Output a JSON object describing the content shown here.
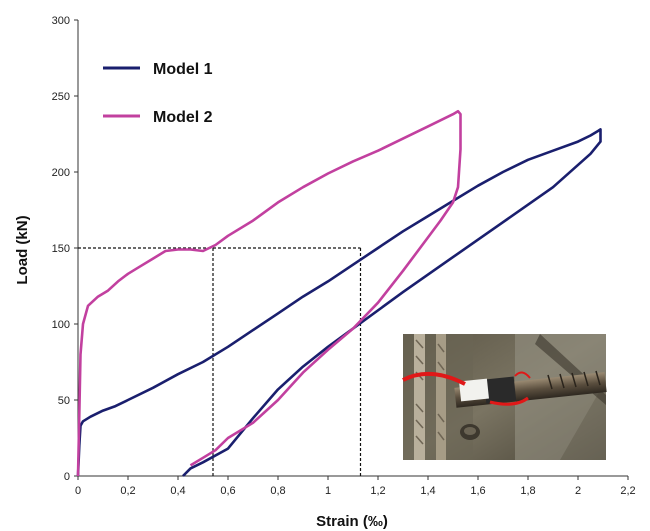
{
  "chart_data": {
    "type": "line",
    "xlabel": "Strain (‰)",
    "ylabel": "Load (kN)",
    "xlim": [
      0,
      2.2
    ],
    "ylim": [
      0,
      300
    ],
    "x_ticks": [
      "0",
      "0,2",
      "0,4",
      "0,6",
      "0,8",
      "1",
      "1,2",
      "1,4",
      "1,6",
      "1,8",
      "2",
      "2,2"
    ],
    "y_ticks": [
      "0",
      "50",
      "100",
      "150",
      "200",
      "250",
      "300"
    ],
    "grid": false,
    "legend_position": "top-left",
    "series": [
      {
        "name": "Model 1",
        "color": "#1a1f6e",
        "x": [
          0,
          0.005,
          0.01,
          0.02,
          0.05,
          0.1,
          0.15,
          0.2,
          0.3,
          0.4,
          0.5,
          0.6,
          0.7,
          0.8,
          0.9,
          1.0,
          1.1,
          1.2,
          1.3,
          1.4,
          1.5,
          1.6,
          1.7,
          1.8,
          1.9,
          2.0,
          2.05,
          2.08,
          2.09,
          2.09,
          2.05,
          1.9,
          1.7,
          1.5,
          1.3,
          1.1,
          1.0,
          0.9,
          0.8,
          0.7,
          0.6,
          0.5,
          0.45,
          0.42
        ],
        "y": [
          0,
          20,
          33,
          36,
          39,
          43,
          46,
          50,
          58,
          67,
          75,
          85,
          96,
          107,
          118,
          128,
          139,
          150,
          161,
          171,
          181,
          191,
          200,
          208,
          214,
          220,
          224,
          227,
          228,
          220,
          212,
          190,
          167,
          144,
          121,
          97,
          85,
          72,
          57,
          38,
          18,
          9,
          5,
          0
        ]
      },
      {
        "name": "Model 2",
        "color": "#c2409f",
        "x": [
          0,
          0.005,
          0.01,
          0.02,
          0.04,
          0.08,
          0.12,
          0.16,
          0.2,
          0.25,
          0.3,
          0.35,
          0.4,
          0.45,
          0.5,
          0.55,
          0.6,
          0.7,
          0.8,
          0.9,
          1.0,
          1.1,
          1.2,
          1.3,
          1.4,
          1.45,
          1.5,
          1.52,
          1.53,
          1.53,
          1.52,
          1.5,
          1.45,
          1.4,
          1.3,
          1.2,
          1.1,
          1.0,
          0.9,
          0.8,
          0.7,
          0.6,
          0.55,
          0.5,
          0.45
        ],
        "y": [
          0,
          40,
          80,
          100,
          112,
          118,
          122,
          128,
          133,
          138,
          143,
          148,
          149,
          149,
          148,
          152,
          158,
          168,
          180,
          190,
          199,
          207,
          214,
          222,
          230,
          234,
          238,
          240,
          238,
          215,
          190,
          180,
          168,
          157,
          135,
          114,
          97,
          83,
          68,
          50,
          35,
          25,
          17,
          12,
          7
        ]
      }
    ],
    "reference_lines": [
      {
        "x": [
          0,
          1.13
        ],
        "y": [
          150,
          150
        ]
      },
      {
        "x": [
          0.54,
          0.54
        ],
        "y": [
          0,
          150
        ]
      },
      {
        "x": [
          1.13,
          1.13
        ],
        "y": [
          0,
          150
        ]
      }
    ]
  }
}
